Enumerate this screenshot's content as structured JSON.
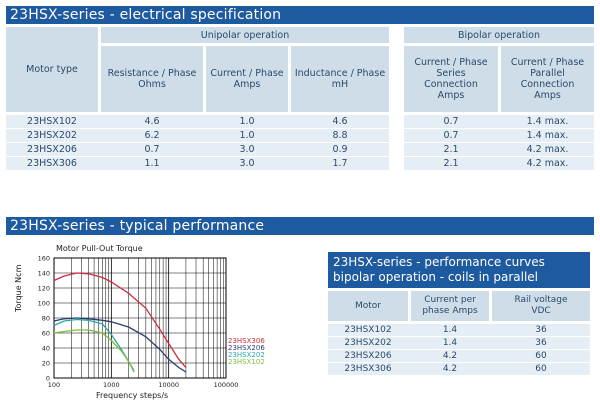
{
  "section1_title": "23HSX-series - electrical specification",
  "section2_title": "23HSX-series - typical performance",
  "spec": {
    "motor_type": "Motor type",
    "unipolar": "Unipolar operation",
    "bipolar": "Bipolar operation",
    "col_res": "Resistance / Phase Ohms",
    "col_cur": "Current / Phase Amps",
    "col_ind": "Inductance / Phase mH",
    "col_series": "Current / Phase Series Connection Amps",
    "col_parallel": "Current / Phase Parallel Connection Amps",
    "rows": [
      {
        "model": "23HSX102",
        "res": "4.6",
        "cur": "1.0",
        "ind": "4.6",
        "series": "0.7",
        "parallel": "1.4 max."
      },
      {
        "model": "23HSX202",
        "res": "6.2",
        "cur": "1.0",
        "ind": "8.8",
        "series": "0.7",
        "parallel": "1.4 max."
      },
      {
        "model": "23HSX206",
        "res": "0.7",
        "cur": "3.0",
        "ind": "0.9",
        "series": "2.1",
        "parallel": "4.2 max."
      },
      {
        "model": "23HSX306",
        "res": "1.1",
        "cur": "3.0",
        "ind": "1.7",
        "series": "2.1",
        "parallel": "4.2 max."
      }
    ]
  },
  "curves_box": {
    "title_line1": "23HSX-series - performance curves",
    "title_line2": "bipolar operation - coils in parallel",
    "col_motor": "Motor",
    "col_current": "Current per phase Amps",
    "col_rail": "Rail voltage VDC",
    "rows": [
      {
        "model": "23HSX102",
        "current": "1.4",
        "rail": "36"
      },
      {
        "model": "23HSX202",
        "current": "1.4",
        "rail": "36"
      },
      {
        "model": "23HSX206",
        "current": "4.2",
        "rail": "60"
      },
      {
        "model": "23HSX306",
        "current": "4.2",
        "rail": "60"
      }
    ]
  },
  "chart_data": {
    "type": "line",
    "title": "Motor Pull-Out Torque",
    "xlabel": "Frequency steps/s",
    "ylabel": "Torque Ncm",
    "x_scale": "log",
    "xlim": [
      100,
      100000
    ],
    "ylim": [
      0,
      160
    ],
    "x_ticks": [
      "100",
      "1000",
      "10000",
      "100000"
    ],
    "y_ticks": [
      "0",
      "20",
      "40",
      "60",
      "80",
      "100",
      "120",
      "140",
      "160"
    ],
    "grid": true,
    "legend_position": "right",
    "series": [
      {
        "name": "23HSX306",
        "color": "#cc2d3a",
        "x": [
          100,
          150,
          250,
          400,
          700,
          1000,
          2000,
          4000,
          7000,
          10000,
          15000,
          20000
        ],
        "y": [
          130,
          136,
          140,
          139,
          134,
          128,
          113,
          93,
          65,
          46,
          25,
          14
        ]
      },
      {
        "name": "23HSX206",
        "color": "#2b3d6b",
        "x": [
          100,
          150,
          250,
          400,
          700,
          1000,
          2000,
          4000,
          7000,
          10000,
          15000,
          20000
        ],
        "y": [
          76,
          79,
          80,
          79,
          77,
          75,
          68,
          55,
          38,
          25,
          14,
          8
        ]
      },
      {
        "name": "23HSX202",
        "color": "#2aa8a8",
        "x": [
          100,
          150,
          250,
          400,
          700,
          1000,
          1500,
          2000,
          2500
        ],
        "y": [
          70,
          76,
          78,
          77,
          72,
          58,
          38,
          22,
          8
        ]
      },
      {
        "name": "23HSX102",
        "color": "#7bbf3a",
        "x": [
          100,
          150,
          250,
          400,
          700,
          1000,
          1500,
          2000,
          2500
        ],
        "y": [
          60,
          62,
          64,
          64,
          60,
          50,
          36,
          22,
          10
        ]
      }
    ]
  }
}
